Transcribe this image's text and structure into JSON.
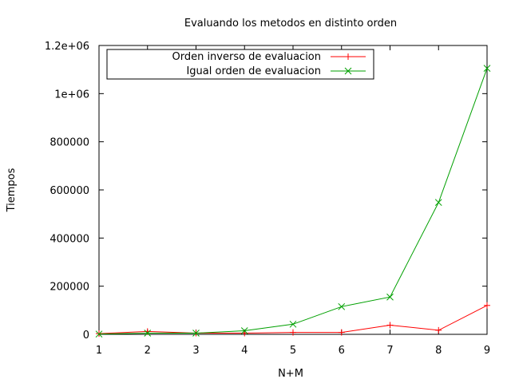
{
  "chart_data": {
    "type": "line",
    "title": "Evaluando los metodos en distinto orden",
    "xlabel": "N+M",
    "ylabel": "Tiempos",
    "xlim": [
      1,
      9
    ],
    "ylim": [
      0,
      1200000
    ],
    "x_ticks": [
      1,
      2,
      3,
      4,
      5,
      6,
      7,
      8,
      9
    ],
    "x_tick_labels": [
      "1",
      "2",
      "3",
      "4",
      "5",
      "6",
      "7",
      "8",
      "9"
    ],
    "y_ticks": [
      0,
      200000,
      400000,
      600000,
      800000,
      1000000,
      1200000
    ],
    "y_tick_labels": [
      "0",
      "200000",
      "400000",
      "600000",
      "800000",
      "1e+06",
      "1.2e+06"
    ],
    "grid": false,
    "legend_position": "top-left",
    "x": [
      1,
      2,
      3,
      4,
      5,
      6,
      7,
      8,
      9
    ],
    "series": [
      {
        "name": "Orden inverso de evaluacion",
        "color": "#ff0000",
        "marker": "plus",
        "values": [
          3000,
          12000,
          5000,
          5000,
          8000,
          8000,
          38000,
          17000,
          120000
        ]
      },
      {
        "name": "Igual orden de evaluacion",
        "color": "#00a000",
        "marker": "cross",
        "values": [
          1000,
          5000,
          5000,
          15000,
          42000,
          115000,
          155000,
          548000,
          1105000
        ]
      }
    ]
  }
}
